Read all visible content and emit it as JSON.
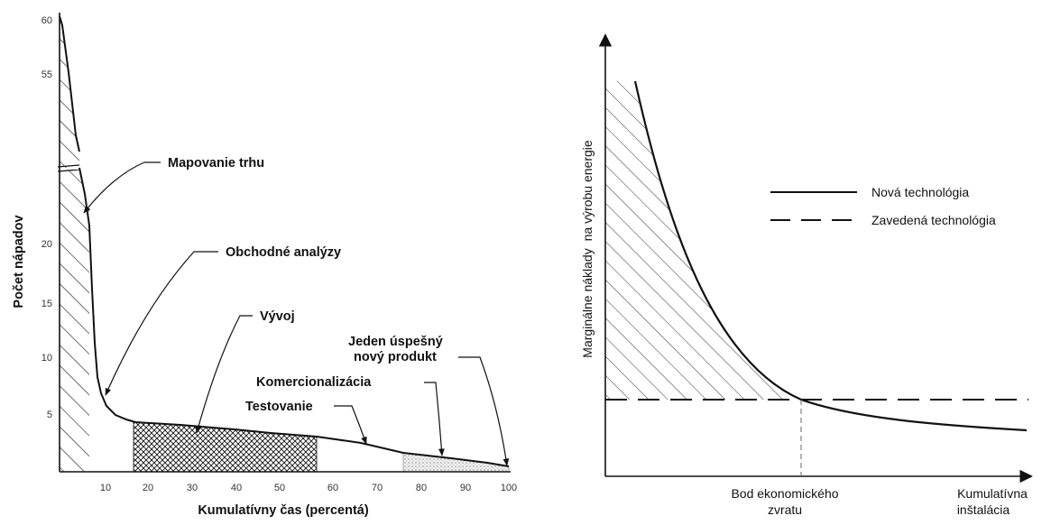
{
  "chart_data": [
    {
      "type": "area",
      "xlabel": "Kumulatívny čas (percentá)",
      "ylabel": "Počet nápadov",
      "x_ticks": [
        "10",
        "20",
        "30",
        "40",
        "50",
        "60",
        "70",
        "80",
        "90",
        "100"
      ],
      "y_ticks_lower": [
        "5",
        "10",
        "15",
        "20"
      ],
      "y_ticks_upper": [
        "55",
        "60"
      ],
      "xlim": [
        0,
        100
      ],
      "series": [
        {
          "x": [
            0.5,
            1.5,
            3,
            5,
            6.3,
            7,
            8,
            10,
            12,
            14,
            17,
            25,
            35,
            45,
            55,
            65,
            75,
            85,
            95,
            99.5
          ],
          "y": [
            60,
            52,
            20,
            18,
            16,
            15,
            13,
            10,
            8,
            6.5,
            5,
            4.5,
            4.3,
            4,
            3.7,
            3.4,
            3.1,
            2.7,
            2.3,
            1.9
          ]
        }
      ],
      "stages": [
        {
          "label": "Mapovanie trhu",
          "x_range": [
            0.5,
            7
          ]
        },
        {
          "label": "Obchodné analýzy",
          "x_range": [
            7,
            17
          ]
        },
        {
          "label": "Vývoj",
          "x_range": [
            17,
            57
          ]
        },
        {
          "label": "Testovanie",
          "x_range": [
            57,
            77
          ]
        },
        {
          "label": "Komercionalizácia",
          "x_range": [
            77,
            99
          ]
        },
        {
          "label": "Jeden úspešný nový produkt",
          "line1": "Jeden úspešný",
          "line2": "nový produkt",
          "x_range": [
            99,
            100
          ]
        }
      ]
    },
    {
      "type": "line",
      "ylabel_line1": "Marginálne náklady",
      "ylabel_line2": "na výrobu energie",
      "xlabel_line1": "Kumulatívna",
      "xlabel_line2": "inštalácia",
      "breakeven_line1": "Bod ekonomického",
      "breakeven_line2": "zvratu",
      "series": [
        {
          "name": "Nová technológia",
          "style": "solid"
        },
        {
          "name": "Zavedená technológia",
          "style": "dashed"
        }
      ],
      "legend_position": "top-right",
      "grid": false
    }
  ]
}
